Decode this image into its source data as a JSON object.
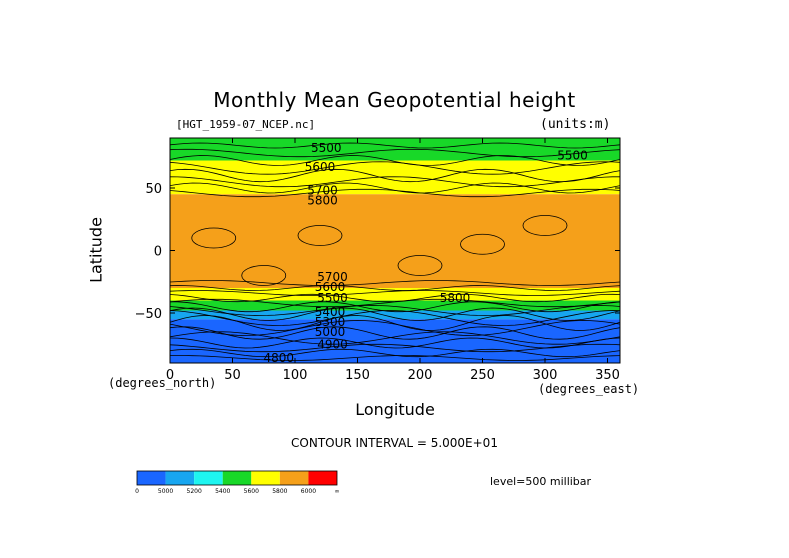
{
  "page": {
    "filename": "[HGT_1959-07_NCEP.nc]",
    "units": "(units:m)",
    "x_units": "(degrees_east)",
    "y_units": "(degrees_north)",
    "contour_interval": "CONTOUR INTERVAL = 5.000E+01",
    "level": "level=500 millibar"
  },
  "chart_data": {
    "type": "heatmap",
    "title": "Monthly Mean Geopotential height",
    "xlabel": "Longitude",
    "ylabel": "Latitude",
    "xlim": [
      0,
      360
    ],
    "ylim": [
      -90,
      90
    ],
    "xticks": [
      0,
      50,
      100,
      150,
      200,
      250,
      300,
      350
    ],
    "yticks": [
      -50,
      0,
      50
    ],
    "grid": false,
    "colorbar": {
      "bounds": [
        5000,
        5200,
        5400,
        5600,
        5800,
        6000
      ],
      "tick_labels": [
        "0",
        "5000",
        "5200",
        "5400",
        "5600",
        "5800",
        "6000",
        "∞"
      ],
      "colors": [
        "#1a66ff",
        "#17a6f0",
        "#1ef5f0",
        "#18d828",
        "#ffff00",
        "#f5a01a",
        "#ff0000"
      ]
    },
    "bands": [
      {
        "lat_from": 90,
        "lat_to": 72,
        "value_range": "5400-5600",
        "color": "#18d828"
      },
      {
        "lat_from": 72,
        "lat_to": 45,
        "value_range": "5600-5800",
        "color": "#ffff00"
      },
      {
        "lat_from": 45,
        "lat_to": -30,
        "value_range": "5800-6000",
        "color": "#f5a01a"
      },
      {
        "lat_from": -30,
        "lat_to": -40,
        "value_range": "5600-5800",
        "color": "#ffff00"
      },
      {
        "lat_from": -40,
        "lat_to": -48,
        "value_range": "5400-5600",
        "color": "#18d828"
      },
      {
        "lat_from": -48,
        "lat_to": -55,
        "value_range": "5200-5400",
        "color": "#17a6f0"
      },
      {
        "lat_from": -55,
        "lat_to": -90,
        "value_range": "5000-5200",
        "color": "#1a66ff"
      }
    ],
    "contour_labels": [
      {
        "text": "5500",
        "lon": 125,
        "lat": 82
      },
      {
        "text": "5600",
        "lon": 120,
        "lat": 67
      },
      {
        "text": "5500",
        "lon": 322,
        "lat": 76
      },
      {
        "text": "5700",
        "lon": 122,
        "lat": 48
      },
      {
        "text": "5800",
        "lon": 122,
        "lat": 40
      },
      {
        "text": "5800",
        "lon": 228,
        "lat": -38
      },
      {
        "text": "5700",
        "lon": 130,
        "lat": -21
      },
      {
        "text": "5600",
        "lon": 128,
        "lat": -29
      },
      {
        "text": "5500",
        "lon": 130,
        "lat": -38
      },
      {
        "text": "5400",
        "lon": 128,
        "lat": -49
      },
      {
        "text": "5300",
        "lon": 128,
        "lat": -57
      },
      {
        "text": "5000",
        "lon": 128,
        "lat": -65
      },
      {
        "text": "4900",
        "lon": 130,
        "lat": -75
      },
      {
        "text": "4800",
        "lon": 87,
        "lat": -86
      }
    ]
  }
}
